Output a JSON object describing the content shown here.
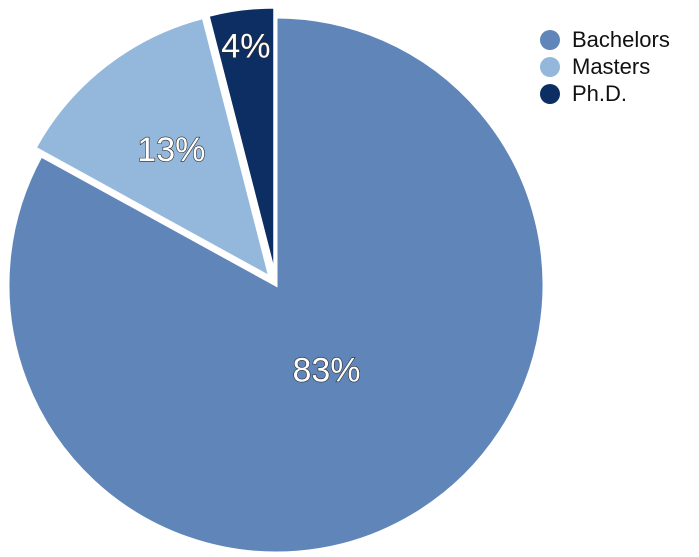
{
  "chart_data": {
    "type": "pie",
    "start_angle_deg": 0,
    "direction": "clockwise",
    "slices": [
      {
        "label": "Bachelors",
        "value": 83,
        "value_label": "83%",
        "color": "#5f85b9",
        "exploded": false
      },
      {
        "label": "Masters",
        "value": 13,
        "value_label": "13%",
        "color": "#94b8dc",
        "exploded": true
      },
      {
        "label": "Ph.D.",
        "value": 4,
        "value_label": "4%",
        "color": "#0d2e63",
        "exploded": true
      }
    ],
    "legend_position": "top-right"
  }
}
